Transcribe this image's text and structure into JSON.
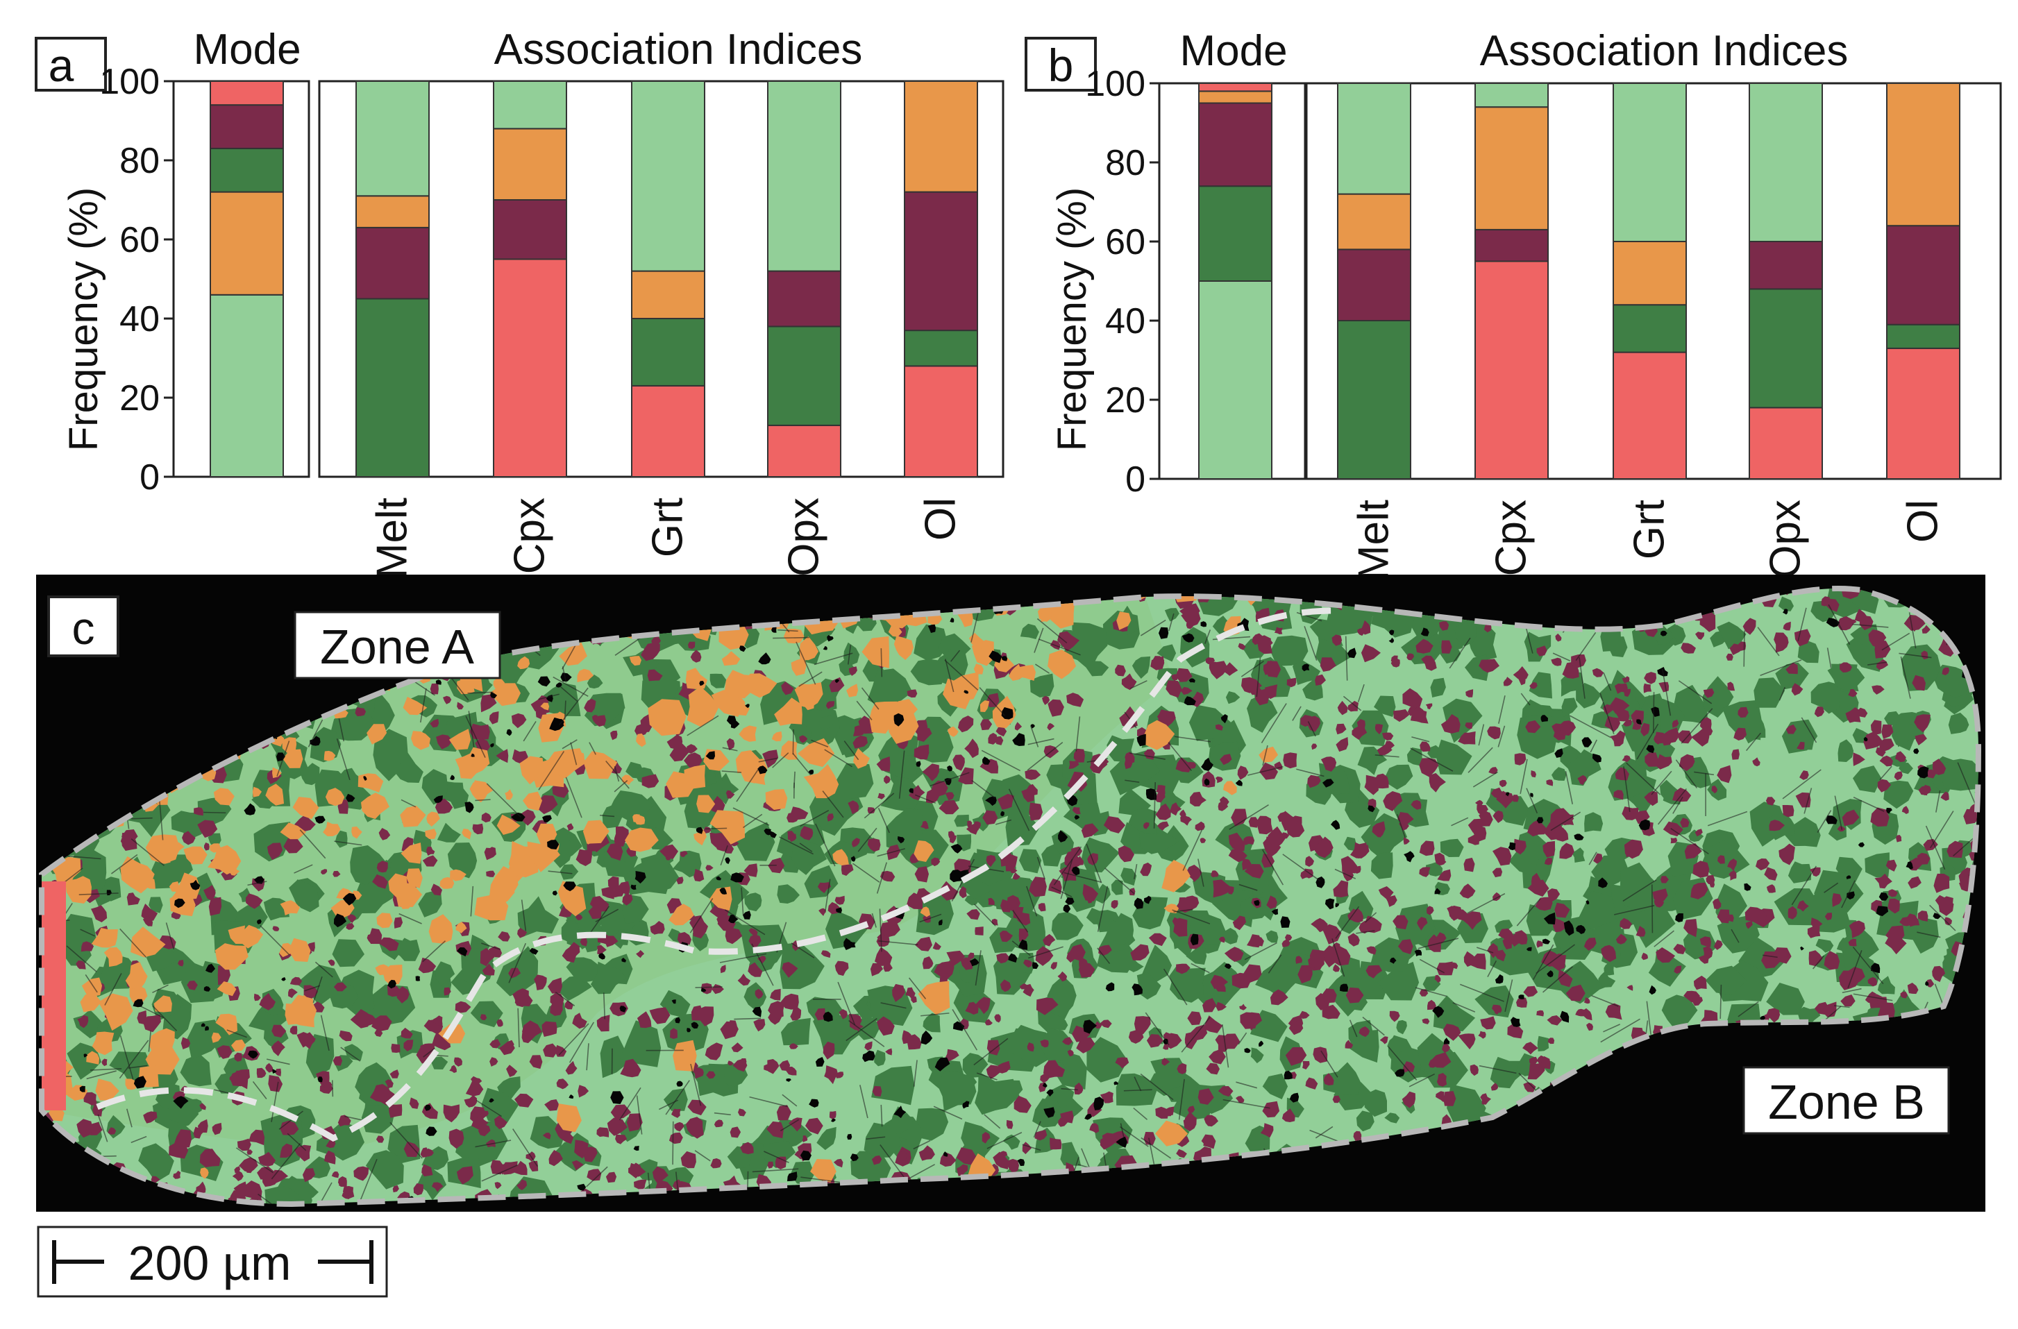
{
  "colors": {
    "light_green": "#92cf98",
    "dark_green": "#3f7f45",
    "maroon": "#7b2a4a",
    "orange": "#e8974a",
    "red": "#ef6464",
    "black": "#050505"
  },
  "chart_data": [
    {
      "panel": "a",
      "type": "bar",
      "stacked": true,
      "ylabel": "Frequency (%)",
      "ylim": [
        0,
        100
      ],
      "yticks": [
        0,
        20,
        40,
        60,
        80,
        100
      ],
      "mode_title": "Mode",
      "assoc_title": "Association Indices",
      "categories": [
        "Melt",
        "Cpx",
        "Grt",
        "Opx",
        "Ol"
      ],
      "mode": [
        {
          "name": "light-green",
          "value": 46
        },
        {
          "name": "orange",
          "value": 26
        },
        {
          "name": "dark-green",
          "value": 11
        },
        {
          "name": "maroon",
          "value": 11
        },
        {
          "name": "red",
          "value": 6
        }
      ],
      "bars": [
        [
          {
            "name": "dark-green",
            "value": 45
          },
          {
            "name": "maroon",
            "value": 18
          },
          {
            "name": "orange",
            "value": 8
          },
          {
            "name": "light-green",
            "value": 29
          }
        ],
        [
          {
            "name": "red",
            "value": 55
          },
          {
            "name": "maroon",
            "value": 15
          },
          {
            "name": "orange",
            "value": 18
          },
          {
            "name": "light-green",
            "value": 12
          }
        ],
        [
          {
            "name": "red",
            "value": 23
          },
          {
            "name": "dark-green",
            "value": 17
          },
          {
            "name": "orange",
            "value": 12
          },
          {
            "name": "light-green",
            "value": 48
          }
        ],
        [
          {
            "name": "red",
            "value": 13
          },
          {
            "name": "dark-green",
            "value": 25
          },
          {
            "name": "maroon",
            "value": 14
          },
          {
            "name": "light-green",
            "value": 48
          }
        ],
        [
          {
            "name": "red",
            "value": 28
          },
          {
            "name": "dark-green",
            "value": 9
          },
          {
            "name": "maroon",
            "value": 35
          },
          {
            "name": "orange",
            "value": 28
          }
        ]
      ]
    },
    {
      "panel": "b",
      "type": "bar",
      "stacked": true,
      "ylabel": "Frequency (%)",
      "ylim": [
        0,
        100
      ],
      "yticks": [
        0,
        20,
        40,
        60,
        80,
        100
      ],
      "mode_title": "Mode",
      "assoc_title": "Association Indices",
      "categories": [
        "Melt",
        "Cpx",
        "Grt",
        "Opx",
        "Ol"
      ],
      "mode": [
        {
          "name": "light-green",
          "value": 50
        },
        {
          "name": "dark-green",
          "value": 24
        },
        {
          "name": "maroon",
          "value": 21
        },
        {
          "name": "orange",
          "value": 3
        },
        {
          "name": "red",
          "value": 2
        }
      ],
      "bars": [
        [
          {
            "name": "dark-green",
            "value": 40
          },
          {
            "name": "maroon",
            "value": 18
          },
          {
            "name": "orange",
            "value": 14
          },
          {
            "name": "light-green",
            "value": 28
          }
        ],
        [
          {
            "name": "red",
            "value": 55
          },
          {
            "name": "maroon",
            "value": 8
          },
          {
            "name": "orange",
            "value": 31
          },
          {
            "name": "light-green",
            "value": 6
          }
        ],
        [
          {
            "name": "red",
            "value": 32
          },
          {
            "name": "dark-green",
            "value": 12
          },
          {
            "name": "orange",
            "value": 16
          },
          {
            "name": "light-green",
            "value": 40
          }
        ],
        [
          {
            "name": "red",
            "value": 18
          },
          {
            "name": "dark-green",
            "value": 30
          },
          {
            "name": "maroon",
            "value": 12
          },
          {
            "name": "light-green",
            "value": 40
          }
        ],
        [
          {
            "name": "red",
            "value": 33
          },
          {
            "name": "dark-green",
            "value": 6
          },
          {
            "name": "maroon",
            "value": 25
          },
          {
            "name": "orange",
            "value": 36
          }
        ]
      ]
    }
  ],
  "map": {
    "panel": "c",
    "zone_a": "Zone A",
    "zone_b": "Zone B",
    "scale_bar": "200 µm"
  }
}
